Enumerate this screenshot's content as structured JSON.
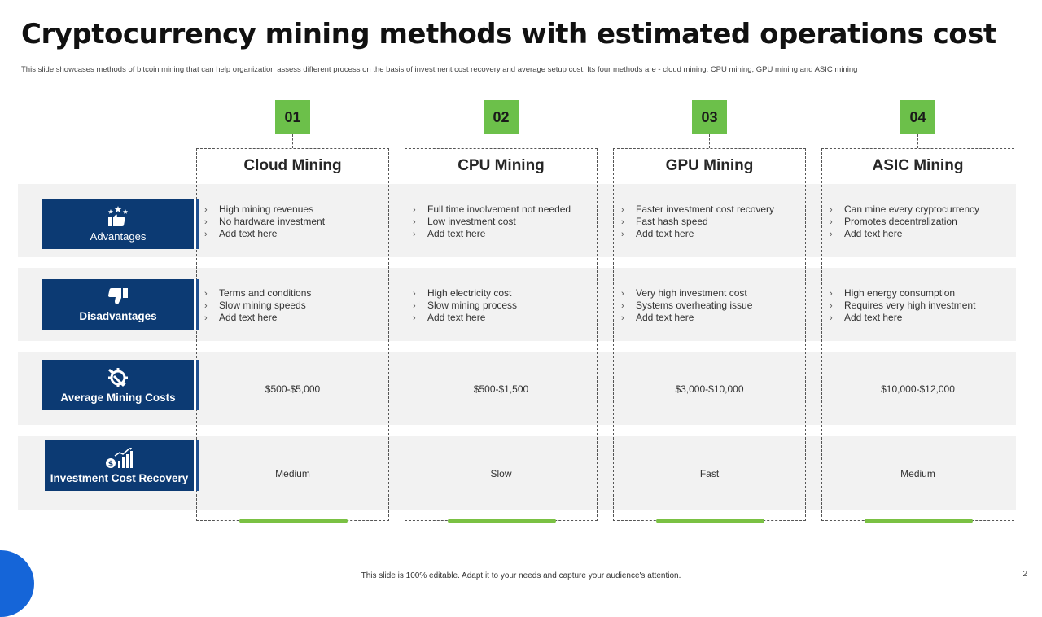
{
  "title": "Cryptocurrency mining methods with estimated operations cost",
  "subtitle": "This slide showcases methods of bitcoin mining  that can help organization assess different process on the basis of investment cost recovery and average setup cost. Its four methods are - cloud mining, CPU  mining, GPU  mining and ASIC mining",
  "rows": [
    {
      "label": "Advantages",
      "icon": "thumbs-up-stars-icon"
    },
    {
      "label": "Disadvantages",
      "icon": "thumbs-down-icon"
    },
    {
      "label": "Average Mining Costs",
      "icon": "gear-wrench-icon"
    },
    {
      "label": "Investment Cost Recovery",
      "icon": "dollar-growth-chart-icon"
    }
  ],
  "methods": [
    {
      "number": "01",
      "name": "Cloud Mining",
      "advantages": [
        "High mining revenues",
        "No hardware investment",
        "Add text here"
      ],
      "disadvantages": [
        "Terms and conditions",
        "Slow mining speeds",
        "Add text here"
      ],
      "cost": "$500-$5,000",
      "recovery": "Medium"
    },
    {
      "number": "02",
      "name": "CPU Mining",
      "advantages": [
        "Full time involvement not needed",
        "Low investment cost",
        "Add text here"
      ],
      "disadvantages": [
        "High electricity cost",
        "Slow mining process",
        "Add text here"
      ],
      "cost": "$500-$1,500",
      "recovery": "Slow"
    },
    {
      "number": "03",
      "name": "GPU Mining",
      "advantages": [
        "Faster investment cost recovery",
        "Fast hash speed",
        "Add text here"
      ],
      "disadvantages": [
        "Very high investment cost",
        "Systems overheating issue",
        "Add text here"
      ],
      "cost": "$3,000-$10,000",
      "recovery": "Fast"
    },
    {
      "number": "04",
      "name": "ASIC Mining",
      "advantages": [
        "Can mine every cryptocurrency",
        "Promotes decentralization",
        "Add text here"
      ],
      "disadvantages": [
        "High energy consumption",
        "Requires very high investment",
        "Add text here"
      ],
      "cost": "$10,000-$12,000",
      "recovery": "Medium"
    }
  ],
  "bullet_glyph": "›",
  "footer": "This slide is 100% editable. Adapt it to your needs and capture your audience's attention.",
  "page_number": "2",
  "colors": {
    "label_bg": "#0c3a73",
    "number_box": "#6cc04a",
    "accent_bar": "#7ac143",
    "band_bg": "#f2f2f2",
    "corner": "#1565d8"
  }
}
